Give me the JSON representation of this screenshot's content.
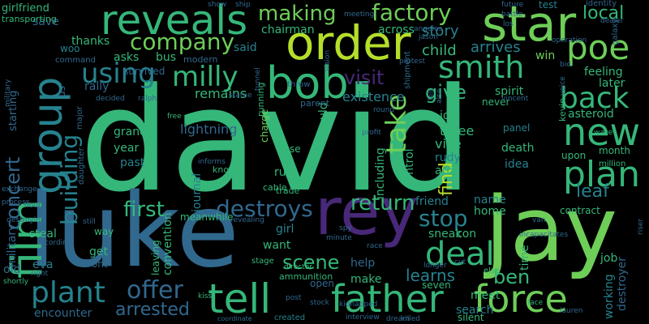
{
  "palette": {
    "background": "#000000",
    "green_light": "#6ece58",
    "green": "#35b779",
    "teal": "#1f9e89",
    "cyan_blue": "#26828e",
    "blue": "#31688e",
    "indigo": "#3e4989",
    "purple": "#482878",
    "dark_purple": "#440154",
    "yellow_green": "#b5de2b"
  },
  "words": [
    "david",
    "luke",
    "jay",
    "rey",
    "order",
    "reveals",
    "star",
    "bob",
    "smith",
    "poe",
    "new",
    "father",
    "force",
    "tell",
    "plan",
    "film",
    "group",
    "milly",
    "company",
    "making",
    "factory",
    "using",
    "back",
    "deal",
    "plant",
    "offer",
    "take",
    "destroys",
    "return",
    "stop",
    "scene",
    "first",
    "give",
    "visit",
    "building",
    "ben",
    "concert",
    "local",
    "arrested",
    "leaf",
    "learns",
    "find",
    "child",
    "arrives",
    "story",
    "across",
    "chairman",
    "said",
    "save",
    "thanks",
    "asks",
    "bus",
    "woo",
    "rally",
    "girlfriend",
    "survived",
    "remains",
    "lightning",
    "grand",
    "year",
    "past",
    "journal",
    "convention",
    "meanwhile",
    "existence",
    "including",
    "control",
    "three",
    "vice",
    "rudy",
    "arm",
    "death",
    "idea",
    "feeling",
    "later",
    "asteroid",
    "spirit",
    "never",
    "join",
    "panel",
    "month",
    "upon",
    "contract",
    "home",
    "friend",
    "name",
    "military",
    "starting",
    "old",
    "eva",
    "steal",
    "get",
    "front",
    "want",
    "girl",
    "help",
    "sneak",
    "con",
    "make",
    "open",
    "seven",
    "meet",
    "search",
    "silent",
    "job",
    "destroyer",
    "working",
    "time",
    "encounter",
    "run",
    "base",
    "charge",
    "would",
    "win",
    "test",
    "identity",
    "command",
    "transporting",
    "modern",
    "knock",
    "cable",
    "ammunition",
    "trade",
    "stage",
    "director",
    "kiss",
    "killed",
    "dream",
    "interview",
    "created",
    "coordinate",
    "kevin",
    "galaxy",
    "voice",
    "operation",
    "jason",
    "angeles",
    "vincent",
    "bid",
    "dealer",
    "future",
    "battle",
    "show",
    "ship",
    "los",
    "military",
    "shipment",
    "throw",
    "else",
    "face",
    "statue",
    "tunnel",
    "vision",
    "protest",
    "round",
    "decided",
    "ralph",
    "free",
    "informs",
    "running",
    "parent",
    "major",
    "daughter",
    "exchange",
    "process",
    "hour",
    "destroying",
    "still",
    "recording",
    "right",
    "shortly",
    "way",
    "leaving",
    "million",
    "wake",
    "profit",
    "kidnapped",
    "revealing",
    "race",
    "minute",
    "spy",
    "cut",
    "incapacitates",
    "van",
    "riser",
    "longer",
    "post",
    "stock",
    "lauren",
    "us",
    "also",
    "felt",
    "meeting"
  ]
}
